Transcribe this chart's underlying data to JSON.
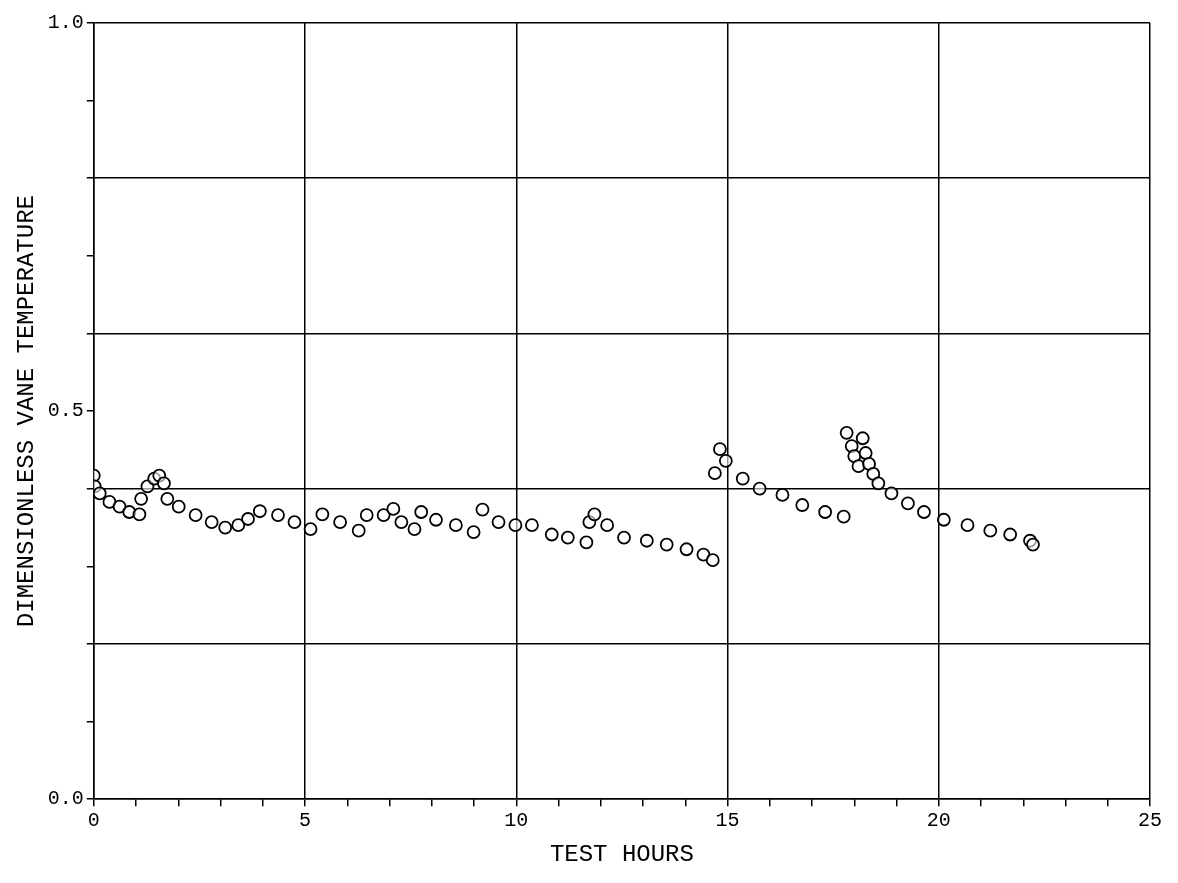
{
  "chart_data": {
    "type": "scatter",
    "xlabel": "TEST HOURS",
    "ylabel": "DIMENSIONLESS VANE TEMPERATURE",
    "color": "#000000",
    "marker": "circle",
    "grid": true,
    "xlim": [
      0,
      25
    ],
    "xticks": [
      0,
      {
        "value": 1,
        "label": null
      },
      {
        "value": 2,
        "label": null
      },
      {
        "value": 3,
        "label": null
      },
      {
        "value": 4,
        "label": null
      },
      5,
      {
        "value": 6,
        "label": null
      },
      {
        "value": 7,
        "label": null
      },
      {
        "value": 8,
        "label": null
      },
      {
        "value": 9,
        "label": null
      },
      10,
      {
        "value": 11,
        "label": null
      },
      {
        "value": 12,
        "label": null
      },
      {
        "value": 13,
        "label": null
      },
      {
        "value": 14,
        "label": null
      },
      15,
      {
        "value": 16,
        "label": null
      },
      {
        "value": 17,
        "label": null
      },
      {
        "value": 18,
        "label": null
      },
      {
        "value": 19,
        "label": null
      },
      20,
      {
        "value": 21,
        "label": null
      },
      {
        "value": 22,
        "label": null
      },
      {
        "value": 23,
        "label": null
      },
      {
        "value": 24,
        "label": null
      },
      25
    ],
    "ylim": [
      0,
      1
    ],
    "yticks": [
      {
        "value": 0,
        "label": "0.0"
      },
      {
        "value": 0.1,
        "label": null
      },
      {
        "value": 0.2,
        "label": null
      },
      {
        "value": 0.3,
        "label": null
      },
      {
        "value": 0.4,
        "label": null
      },
      0.5,
      {
        "value": 0.6,
        "label": null
      },
      {
        "value": 0.7,
        "label": null
      },
      {
        "value": 0.8,
        "label": null
      },
      {
        "value": 0.9,
        "label": null
      },
      {
        "value": 1,
        "label": "1.0"
      }
    ],
    "x": [
      0,
      0.02,
      0.14,
      0.37,
      0.61,
      0.84,
      1.08,
      1.12,
      1.27,
      1.43,
      1.55,
      1.66,
      1.74,
      2.01,
      2.41,
      2.79,
      3.11,
      3.42,
      3.65,
      3.93,
      4.36,
      4.75,
      5.13,
      5.41,
      5.83,
      6.27,
      6.46,
      6.86,
      7.09,
      7.28,
      7.59,
      7.75,
      8.1,
      8.57,
      8.99,
      9.2,
      9.58,
      9.98,
      10.37,
      10.84,
      11.22,
      11.66,
      11.73,
      11.85,
      12.15,
      12.55,
      13.09,
      13.56,
      14.03,
      14.43,
      14.65,
      14.7,
      14.82,
      14.96,
      15.36,
      15.76,
      16.3,
      16.77,
      17.31,
      17.75,
      17.82,
      17.94,
      18.0,
      18.1,
      18.2,
      18.27,
      18.35,
      18.45,
      18.57,
      18.88,
      19.27,
      19.65,
      20.12,
      20.68,
      21.22,
      21.69,
      22.16,
      22.23
    ],
    "values": [
      0.417,
      0.403,
      0.394,
      0.383,
      0.377,
      0.37,
      0.367,
      0.387,
      0.403,
      0.413,
      0.417,
      0.407,
      0.387,
      0.377,
      0.366,
      0.357,
      0.35,
      0.353,
      0.361,
      0.371,
      0.366,
      0.357,
      0.348,
      0.367,
      0.357,
      0.346,
      0.366,
      0.366,
      0.374,
      0.357,
      0.348,
      0.37,
      0.36,
      0.353,
      0.344,
      0.373,
      0.357,
      0.353,
      0.353,
      0.341,
      0.337,
      0.331,
      0.357,
      0.367,
      0.353,
      0.337,
      0.333,
      0.328,
      0.322,
      0.315,
      0.308,
      0.42,
      0.451,
      0.436,
      0.413,
      0.4,
      0.392,
      0.379,
      0.37,
      0.364,
      0.472,
      0.455,
      0.442,
      0.429,
      0.465,
      0.446,
      0.432,
      0.419,
      0.407,
      0.394,
      0.381,
      0.37,
      0.36,
      0.353,
      0.346,
      0.341,
      0.333,
      0.328
    ]
  }
}
